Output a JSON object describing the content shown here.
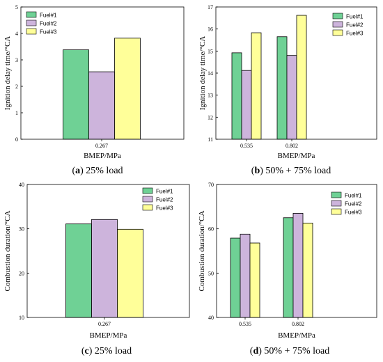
{
  "series_colors": [
    "#6fd195",
    "#cdb4dc",
    "#ffff99"
  ],
  "chart_data": [
    {
      "type": "bar",
      "panel_letter": "a",
      "caption": "25% load",
      "categories": [
        "0.267"
      ],
      "series": [
        {
          "name": "Fuel#1",
          "values": [
            3.38
          ]
        },
        {
          "name": "Fuel#2",
          "values": [
            2.55
          ]
        },
        {
          "name": "Fuel#3",
          "values": [
            3.82
          ]
        }
      ],
      "xlabel": "BMEP/MPa",
      "ylabel": "Ignition delay time/°CA",
      "ylim": [
        0,
        5
      ],
      "yticks": [
        "0",
        "1",
        "2",
        "3",
        "4",
        "5"
      ],
      "legend": "top-left",
      "grid": false
    },
    {
      "type": "bar",
      "panel_letter": "b",
      "caption": "50% + 75% load",
      "categories": [
        "0.535",
        "0.802"
      ],
      "series": [
        {
          "name": "Fuel#1",
          "values": [
            14.92,
            15.65
          ]
        },
        {
          "name": "Fuel#2",
          "values": [
            14.12,
            14.8
          ]
        },
        {
          "name": "Fuel#3",
          "values": [
            15.83,
            16.62
          ]
        }
      ],
      "xlabel": "BMEP/MPa",
      "ylabel": "Ignition delay time/°CA",
      "ylim": [
        11,
        17
      ],
      "yticks": [
        "11",
        "12",
        "13",
        "14",
        "15",
        "16",
        "17"
      ],
      "legend": "top-right",
      "grid": false
    },
    {
      "type": "bar",
      "panel_letter": "c",
      "caption": "25% load",
      "categories": [
        "0.267"
      ],
      "series": [
        {
          "name": "Fuel#1",
          "values": [
            31.1
          ]
        },
        {
          "name": "Fuel#2",
          "values": [
            32.1
          ]
        },
        {
          "name": "Fuel#3",
          "values": [
            29.9
          ]
        }
      ],
      "xlabel": "BMEP/MPa",
      "ylabel": "Combustion duration/°CA",
      "ylim": [
        10,
        40
      ],
      "yticks": [
        "10",
        "20",
        "30",
        "40"
      ],
      "legend": "top-right",
      "grid": false
    },
    {
      "type": "bar",
      "panel_letter": "d",
      "caption": "50% + 75% load",
      "categories": [
        "0.535",
        "0.802"
      ],
      "series": [
        {
          "name": "Fuel#1",
          "values": [
            57.9,
            62.5
          ]
        },
        {
          "name": "Fuel#2",
          "values": [
            58.8,
            63.5
          ]
        },
        {
          "name": "Fuel#3",
          "values": [
            56.8,
            61.3
          ]
        }
      ],
      "xlabel": "BMEP/MPa",
      "ylabel": "Combustion duration/°CA",
      "ylim": [
        40,
        70
      ],
      "yticks": [
        "40",
        "50",
        "60",
        "70"
      ],
      "legend": "top-right",
      "grid": false
    }
  ]
}
